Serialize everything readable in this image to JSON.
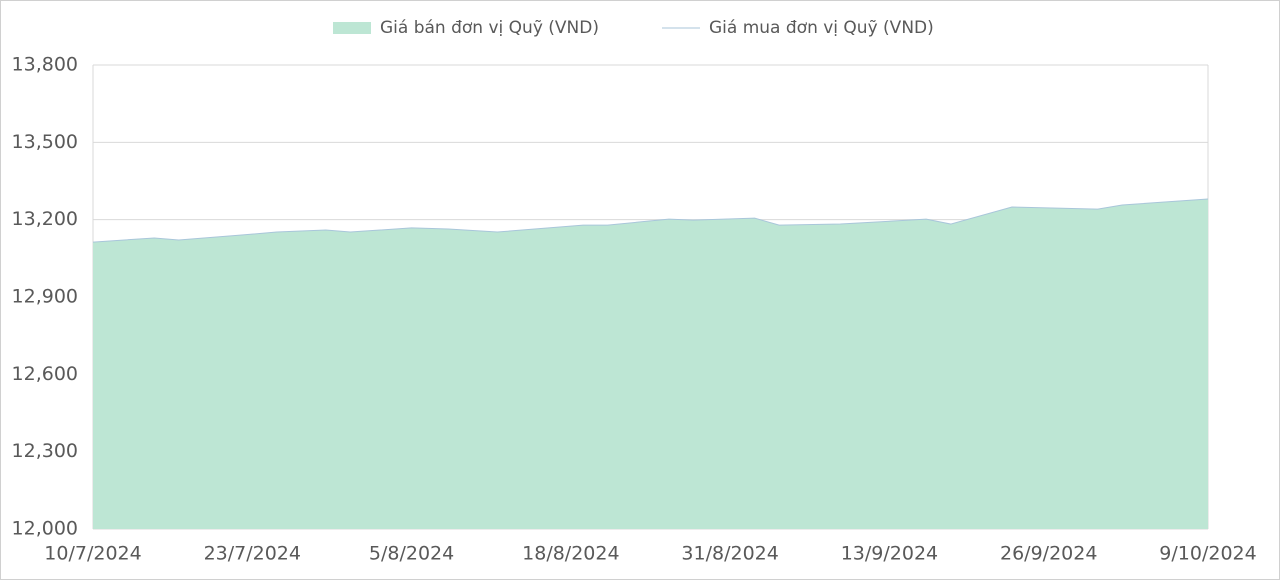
{
  "chart_data": {
    "type": "area-line",
    "x": [
      "10/7/2024",
      "15/7/2024",
      "17/7/2024",
      "22/7/2024",
      "25/7/2024",
      "29/7/2024",
      "31/7/2024",
      "5/8/2024",
      "8/8/2024",
      "12/8/2024",
      "19/8/2024",
      "21/8/2024",
      "26/8/2024",
      "28/8/2024",
      "2/9/2024",
      "4/9/2024",
      "9/9/2024",
      "16/9/2024",
      "18/9/2024",
      "23/9/2024",
      "30/9/2024",
      "2/10/2024",
      "9/10/2024"
    ],
    "series": [
      {
        "name": "Giá bán đơn vị Quỹ (VND)",
        "color": "#bde6d4",
        "kind": "area",
        "values": [
          13113,
          13129,
          13121,
          13140,
          13152,
          13160,
          13152,
          13168,
          13164,
          13152,
          13179,
          13179,
          13202,
          13198,
          13206,
          13179,
          13183,
          13202,
          13183,
          13249,
          13241,
          13257,
          13280
        ]
      },
      {
        "name": "Giá mua đơn vị Quỹ (VND)",
        "color": "#a9c6da",
        "kind": "line",
        "values": [
          13113,
          13129,
          13121,
          13140,
          13152,
          13160,
          13152,
          13168,
          13164,
          13152,
          13179,
          13179,
          13202,
          13198,
          13206,
          13179,
          13183,
          13202,
          13183,
          13249,
          13241,
          13257,
          13280
        ]
      }
    ],
    "xticks": [
      "10/7/2024",
      "23/7/2024",
      "5/8/2024",
      "18/8/2024",
      "31/8/2024",
      "13/9/2024",
      "26/9/2024",
      "9/10/2024"
    ],
    "ylim": [
      12000,
      13800
    ],
    "yticks": [
      {
        "value": 12000,
        "label": "12,000"
      },
      {
        "value": 12300,
        "label": "12,300"
      },
      {
        "value": 12600,
        "label": "12,600"
      },
      {
        "value": 12900,
        "label": "12,900"
      },
      {
        "value": 13200,
        "label": "13,200"
      },
      {
        "value": 13500,
        "label": "13,500"
      },
      {
        "value": 13800,
        "label": "13,800"
      }
    ],
    "grid": true,
    "legend": "top"
  }
}
